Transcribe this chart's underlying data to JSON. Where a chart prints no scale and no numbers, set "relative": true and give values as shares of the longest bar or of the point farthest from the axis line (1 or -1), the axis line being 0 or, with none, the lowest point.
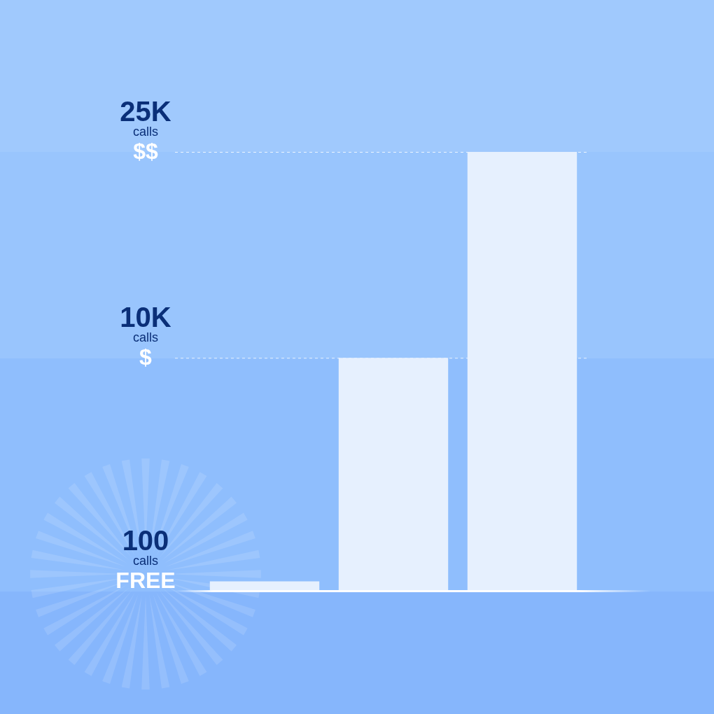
{
  "chart_data": {
    "type": "bar",
    "categories": [
      null,
      null,
      null
    ],
    "values": [
      0.02,
      0.53,
      1
    ],
    "color": "#e6f0fe",
    "relative": true,
    "ref_lines": [
      {
        "axis": "y",
        "value": 0.53,
        "label": "10K\ncalls\n$",
        "color": "#ffffff",
        "line_style": "dashed"
      },
      {
        "axis": "y",
        "value": 1,
        "label": "25K\ncalls\n$$",
        "color": "#ffffff",
        "line_style": "dashed"
      }
    ],
    "annotations": [
      "100\ncalls\nFREE"
    ]
  }
}
